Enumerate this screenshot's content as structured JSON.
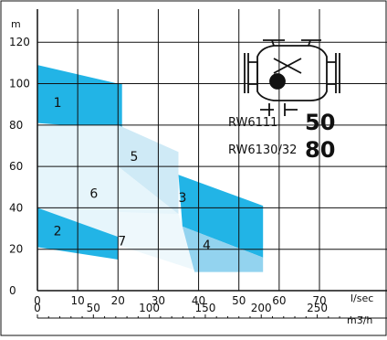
{
  "chart_data": {
    "type": "area",
    "ylabel": "m",
    "xlabel": "l/sec",
    "x2label": "m3/h",
    "xlim": [
      0,
      87
    ],
    "ylim": [
      0,
      136
    ],
    "x_ticks": [
      0,
      10,
      20,
      30,
      40,
      50,
      60,
      70
    ],
    "y_ticks": [
      0,
      20,
      40,
      60,
      80,
      100,
      120
    ],
    "x2_ticks": [
      0,
      50,
      100,
      150,
      200,
      250
    ],
    "grid": true,
    "models": [
      {
        "label": "RW6111",
        "size": "50"
      },
      {
        "label": "RW6130/32",
        "size": "80"
      }
    ],
    "regions": [
      {
        "name": "1",
        "color": "#22b4e6",
        "label_at": [
          5,
          91
        ],
        "polygon": [
          [
            0,
            109
          ],
          [
            20,
            100
          ],
          [
            21,
            100
          ],
          [
            21,
            78
          ],
          [
            20,
            78
          ],
          [
            0,
            81
          ]
        ]
      },
      {
        "name": "2",
        "color": "#22b4e6",
        "label_at": [
          5,
          29
        ],
        "polygon": [
          [
            0,
            43
          ],
          [
            20,
            35
          ],
          [
            20,
            15
          ],
          [
            0,
            21
          ]
        ]
      },
      {
        "name": "5",
        "color": "#cfeaf6",
        "label_at": [
          24,
          65
        ],
        "polygon": [
          [
            20,
            80
          ],
          [
            35,
            67
          ],
          [
            35,
            37
          ],
          [
            20,
            60
          ]
        ]
      },
      {
        "name": "6",
        "color": "#e6f5fb",
        "label_at": [
          14,
          47
        ],
        "polygon": [
          [
            0,
            80
          ],
          [
            20,
            80
          ],
          [
            20,
            60
          ],
          [
            35,
            37
          ],
          [
            20,
            26
          ],
          [
            0,
            40
          ]
        ]
      },
      {
        "name": "7",
        "color": "#eef8fc",
        "label_at": [
          21,
          24
        ],
        "polygon": [
          [
            20,
            38
          ],
          [
            35,
            37
          ],
          [
            39,
            10
          ],
          [
            20,
            22
          ]
        ]
      },
      {
        "name": "3",
        "color": "#22b4e6",
        "label_at": [
          36,
          45
        ],
        "polygon": [
          [
            35,
            56
          ],
          [
            56,
            41
          ],
          [
            56,
            16
          ],
          [
            36,
            31
          ]
        ]
      },
      {
        "name": "4",
        "color": "#93d3ef",
        "label_at": [
          42,
          22
        ],
        "polygon": [
          [
            35,
            38
          ],
          [
            36,
            31
          ],
          [
            56,
            16
          ],
          [
            56,
            9
          ],
          [
            39,
            9
          ]
        ]
      }
    ]
  }
}
